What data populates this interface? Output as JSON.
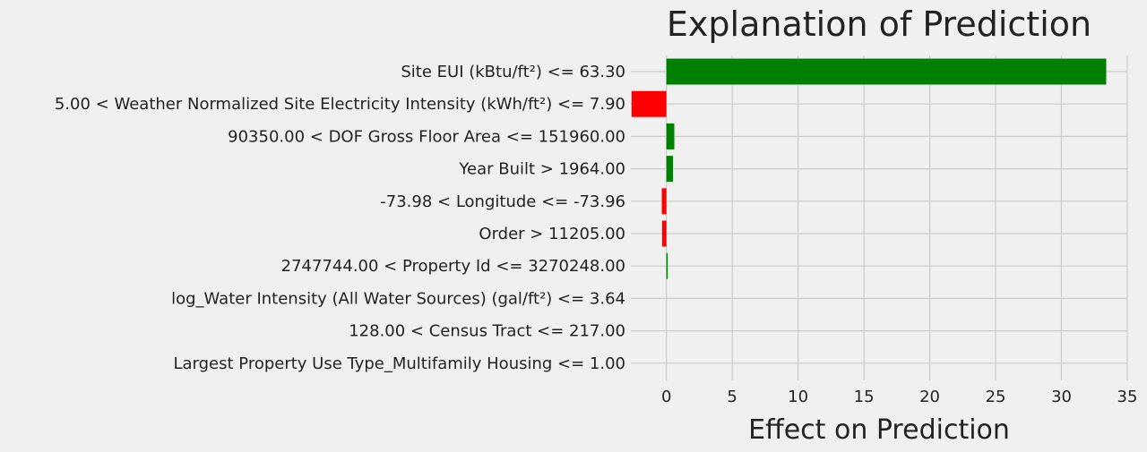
{
  "chart_data": {
    "type": "bar",
    "orientation": "horizontal",
    "title": "Explanation of Prediction",
    "xlabel": "Effect on Prediction",
    "ylabel": "",
    "xlim": [
      -2.7,
      35
    ],
    "xticks": [
      0,
      5,
      10,
      15,
      20,
      25,
      30,
      35
    ],
    "grid": true,
    "positive_color": "#008000",
    "negative_color": "#ff0000",
    "background": "#f0f0f0",
    "categories": [
      "Site EUI (kBtu/ft²) <= 63.30",
      "5.00 < Weather Normalized Site Electricity Intensity (kWh/ft²) <= 7.90",
      "90350.00 < DOF Gross Floor Area <= 151960.00",
      "Year Built > 1964.00",
      "-73.98 < Longitude <= -73.96",
      "Order > 11205.00",
      "2747744.00 < Property Id <= 3270248.00",
      "log_Water Intensity (All Water Sources) (gal/ft²) <= 3.64",
      "128.00 < Census Tract <= 217.00",
      "Largest Property Use Type_Multifamily Housing <= 1.00"
    ],
    "values": [
      33.4,
      -2.65,
      0.6,
      0.5,
      -0.35,
      -0.33,
      0.1,
      0.0,
      0.0,
      0.0
    ]
  }
}
